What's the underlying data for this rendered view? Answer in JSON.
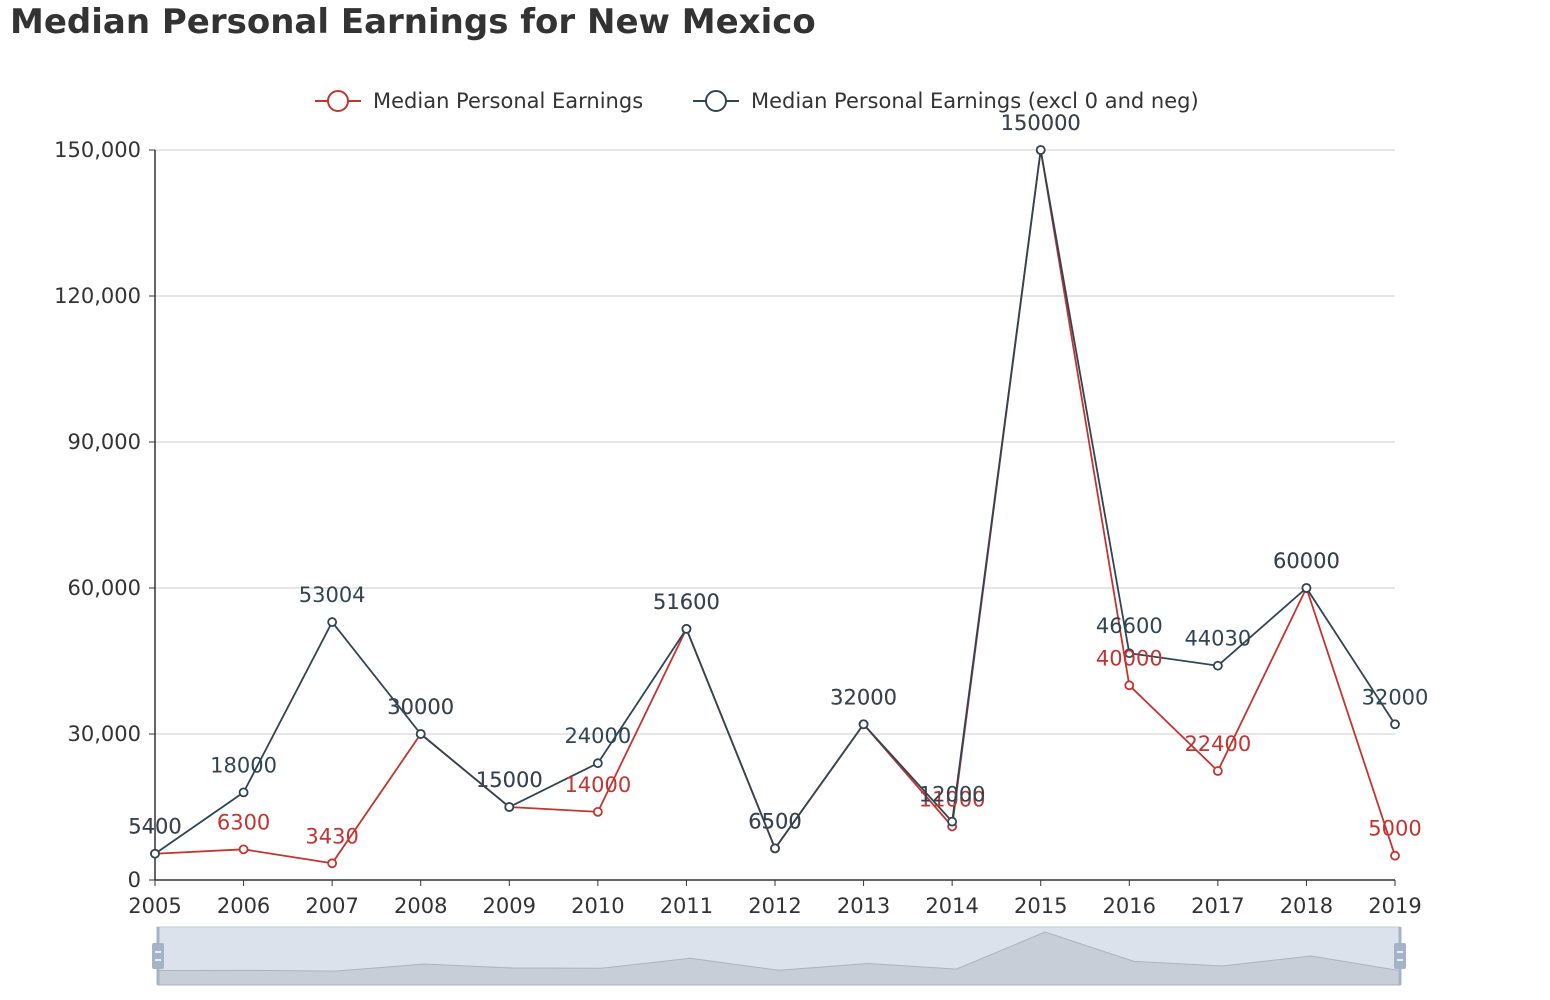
{
  "page": {
    "title": "Median Personal Earnings for New Mexico"
  },
  "chart_data": {
    "type": "line",
    "title": "Median Personal Earnings for New Mexico",
    "x": [
      "2005",
      "2006",
      "2007",
      "2008",
      "2009",
      "2010",
      "2011",
      "2012",
      "2013",
      "2014",
      "2015",
      "2016",
      "2017",
      "2018",
      "2019"
    ],
    "ylim": [
      0,
      150000
    ],
    "yticks": [
      0,
      30000,
      60000,
      90000,
      120000,
      150000
    ],
    "ytick_labels": [
      "0",
      "30,000",
      "60,000",
      "90,000",
      "120,000",
      "150,000"
    ],
    "grid": true,
    "legend_position": "top-center",
    "series": [
      {
        "name": "Median Personal Earnings",
        "color": "#c23531",
        "values": [
          5400,
          6300,
          3430,
          30000,
          15000,
          14000,
          51600,
          6500,
          32000,
          11000,
          150000,
          40000,
          22400,
          60000,
          5000
        ]
      },
      {
        "name": "Median Personal Earnings (excl 0 and neg)",
        "color": "#2f4554",
        "values": [
          5400,
          18000,
          53004,
          30000,
          15000,
          24000,
          51600,
          6500,
          32000,
          12000,
          150000,
          46600,
          44030,
          60000,
          32000
        ]
      }
    ],
    "data_zoom": {
      "start": 0,
      "end": 100
    }
  }
}
